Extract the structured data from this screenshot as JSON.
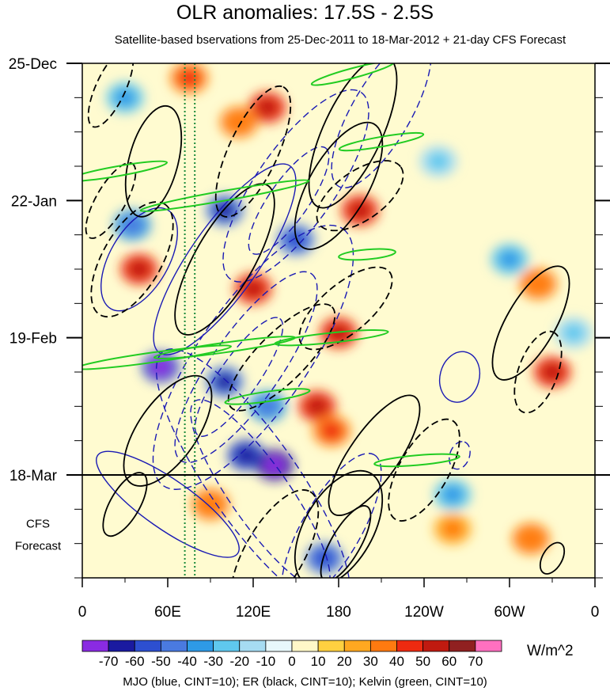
{
  "chart_data": {
    "type": "heatmap",
    "title": "OLR anomalies: 17.5S - 2.5S",
    "subtitle": "Satellite-based bservations from 25-Dec-2011 to 18-Mar-2012 + 21-day CFS Forecast",
    "x_ticks": [
      "0",
      "60E",
      "120E",
      "180",
      "120W",
      "60W",
      "0"
    ],
    "x_tick_degrees": [
      0,
      60,
      120,
      180,
      240,
      300,
      360
    ],
    "x_range_degrees": [
      0,
      360
    ],
    "y_ticks": [
      "25-Dec",
      "22-Jan",
      "19-Feb",
      "18-Mar"
    ],
    "y_tick_days": [
      0,
      28,
      56,
      84
    ],
    "y_range_days": [
      0,
      105
    ],
    "observation_end_day": 84,
    "forecast_label": [
      "CFS",
      "Forecast"
    ],
    "colorbar": {
      "units": "W/m^2",
      "levels": [
        -70,
        -60,
        -50,
        -40,
        -30,
        -20,
        -10,
        0,
        10,
        20,
        30,
        40,
        50,
        60,
        70
      ],
      "labels": [
        "-70",
        "-60",
        "-50",
        "-40",
        "-30",
        "-20",
        "-10",
        "0",
        "10",
        "20",
        "30",
        "40",
        "50",
        "60",
        "70"
      ],
      "colors": [
        "#8a2be2",
        "#1a1aa0",
        "#2d4fd0",
        "#4a7ae0",
        "#2e9ae6",
        "#5fc8ee",
        "#a6dcf2",
        "#e8f8fb",
        "#fff8c8",
        "#ffd040",
        "#ffa820",
        "#ff7a10",
        "#ee2a10",
        "#c01a10",
        "#902020",
        "#ff70c0"
      ]
    },
    "reference_lines": {
      "green_dotted_longitudes": [
        72,
        79
      ]
    },
    "contour_legend": "MJO (blue, CINT=10); ER (black, CINT=10); Kelvin (green, CINT=10)",
    "series_colors": {
      "MJO": "#1a1ab4",
      "ER": "#000000",
      "Kelvin": "#22cc22"
    },
    "anomaly_features": [
      {
        "lon": 75,
        "day": 3,
        "value": 35
      },
      {
        "lon": 130,
        "day": 9,
        "value": 40
      },
      {
        "lon": 110,
        "day": 12,
        "value": 30
      },
      {
        "lon": 195,
        "day": 30,
        "value": 45
      },
      {
        "lon": 40,
        "day": 42,
        "value": 40
      },
      {
        "lon": 120,
        "day": 46,
        "value": 45
      },
      {
        "lon": 180,
        "day": 55,
        "value": 40
      },
      {
        "lon": 165,
        "day": 70,
        "value": 40
      },
      {
        "lon": 175,
        "day": 75,
        "value": 35
      },
      {
        "lon": 90,
        "day": 90,
        "value": 30
      },
      {
        "lon": 330,
        "day": 63,
        "value": 40
      },
      {
        "lon": 320,
        "day": 45,
        "value": 30
      },
      {
        "lon": 315,
        "day": 97,
        "value": 30
      },
      {
        "lon": 260,
        "day": 95,
        "value": 25
      },
      {
        "lon": 100,
        "day": 30,
        "value": -50
      },
      {
        "lon": 150,
        "day": 36,
        "value": -45
      },
      {
        "lon": 55,
        "day": 62,
        "value": -60
      },
      {
        "lon": 100,
        "day": 65,
        "value": -50
      },
      {
        "lon": 115,
        "day": 80,
        "value": -55
      },
      {
        "lon": 135,
        "day": 82,
        "value": -70
      },
      {
        "lon": 130,
        "day": 70,
        "value": -40
      },
      {
        "lon": 30,
        "day": 7,
        "value": -30
      },
      {
        "lon": 35,
        "day": 33,
        "value": -35
      },
      {
        "lon": 170,
        "day": 101,
        "value": -45
      },
      {
        "lon": 260,
        "day": 88,
        "value": -30
      },
      {
        "lon": 300,
        "day": 40,
        "value": -25
      },
      {
        "lon": 250,
        "day": 20,
        "value": -20
      },
      {
        "lon": 345,
        "day": 55,
        "value": -20
      }
    ],
    "contours": {
      "ER": [
        {
          "lon": 50,
          "day": 20,
          "rx": 40,
          "ry": 5,
          "angle": -75,
          "value": 10
        },
        {
          "lon": 100,
          "day": 40,
          "rx": 60,
          "ry": 6,
          "angle": -60,
          "value": 10
        },
        {
          "lon": 180,
          "day": 25,
          "rx": 50,
          "ry": 6,
          "angle": -60,
          "value": 10
        },
        {
          "lon": 190,
          "day": 14,
          "rx": 58,
          "ry": 6,
          "angle": -65,
          "value": 10
        },
        {
          "lon": 180,
          "day": 95,
          "rx": 45,
          "ry": 7,
          "angle": -60,
          "value": 10
        },
        {
          "lon": 185,
          "day": 98,
          "rx": 30,
          "ry": 3,
          "angle": -60,
          "value": 10
        },
        {
          "lon": 205,
          "day": 80,
          "rx": 50,
          "ry": 5,
          "angle": -55,
          "value": 10
        },
        {
          "lon": 315,
          "day": 53,
          "rx": 45,
          "ry": 5,
          "angle": -60,
          "value": 10
        },
        {
          "lon": 60,
          "day": 75,
          "rx": 45,
          "ry": 6,
          "angle": -55,
          "value": 10
        },
        {
          "lon": 30,
          "day": 90,
          "rx": 25,
          "ry": 3,
          "angle": -60,
          "value": 10
        },
        {
          "lon": 330,
          "day": 101,
          "rx": 12,
          "ry": 2,
          "angle": -60,
          "value": 10
        },
        {
          "lon": 120,
          "day": 18,
          "rx": 50,
          "ry": 5,
          "angle": -65,
          "value": -10
        },
        {
          "lon": 35,
          "day": 40,
          "rx": 45,
          "ry": 6,
          "angle": -60,
          "value": -10
        },
        {
          "lon": 195,
          "day": 27,
          "rx": 35,
          "ry": 5,
          "angle": -35,
          "value": -10
        },
        {
          "lon": 185,
          "day": 50,
          "rx": 40,
          "ry": 5,
          "angle": -40,
          "value": -10
        },
        {
          "lon": 140,
          "day": 60,
          "rx": 50,
          "ry": 5,
          "angle": -45,
          "value": -10
        },
        {
          "lon": 135,
          "day": 100,
          "rx": 50,
          "ry": 6,
          "angle": -60,
          "value": -10
        },
        {
          "lon": 240,
          "day": 83,
          "rx": 40,
          "ry": 5,
          "angle": -60,
          "value": -10
        },
        {
          "lon": 320,
          "day": 63,
          "rx": 30,
          "ry": 4,
          "angle": -70,
          "value": -10
        },
        {
          "lon": 20,
          "day": 28,
          "rx": 30,
          "ry": 3,
          "angle": -60,
          "value": -10
        },
        {
          "lon": 20,
          "day": 5,
          "rx": 30,
          "ry": 3,
          "angle": -65,
          "value": -10
        }
      ],
      "MJO": [
        {
          "lon": 120,
          "day": 60,
          "rx": 110,
          "ry": 11,
          "angle": -55,
          "value": -10
        },
        {
          "lon": 115,
          "day": 62,
          "rx": 80,
          "ry": 7,
          "angle": -55,
          "value": -20
        },
        {
          "lon": 110,
          "day": 64,
          "rx": 50,
          "ry": 4,
          "angle": -55,
          "value": -30
        },
        {
          "lon": 150,
          "day": 25,
          "rx": 80,
          "ry": 8,
          "angle": -55,
          "value": -10
        },
        {
          "lon": 145,
          "day": 28,
          "rx": 45,
          "ry": 4,
          "angle": -55,
          "value": -20
        },
        {
          "lon": 210,
          "day": 10,
          "rx": 60,
          "ry": 6,
          "angle": -60,
          "value": -10
        },
        {
          "lon": 120,
          "day": 85,
          "rx": 110,
          "ry": 9,
          "angle": 55,
          "value": -10
        },
        {
          "lon": 125,
          "day": 88,
          "rx": 80,
          "ry": 6,
          "angle": 55,
          "value": -20
        },
        {
          "lon": 175,
          "day": 95,
          "rx": 60,
          "ry": 6,
          "angle": -60,
          "value": -10
        },
        {
          "lon": 60,
          "day": 90,
          "rx": 60,
          "ry": 5,
          "angle": 35,
          "value": 10
        },
        {
          "lon": 100,
          "day": 40,
          "rx": 80,
          "ry": 7,
          "angle": -55,
          "value": 10
        },
        {
          "lon": 40,
          "day": 40,
          "rx": 40,
          "ry": 6,
          "angle": -60,
          "value": 10
        },
        {
          "lon": 265,
          "day": 64,
          "rx": 18,
          "ry": 4,
          "angle": -75,
          "value": 10
        },
        {
          "lon": 265,
          "day": 80,
          "rx": 10,
          "ry": 2,
          "angle": -70,
          "value": -10
        }
      ],
      "Kelvin": [
        {
          "lon": 190,
          "day": 2,
          "rx": 30,
          "ry": 1,
          "angle": -15
        },
        {
          "lon": 210,
          "day": 16,
          "rx": 30,
          "ry": 1,
          "angle": -10
        },
        {
          "lon": 25,
          "day": 22,
          "rx": 35,
          "ry": 1,
          "angle": -10
        },
        {
          "lon": 100,
          "day": 27,
          "rx": 60,
          "ry": 1,
          "angle": -10
        },
        {
          "lon": 50,
          "day": 60,
          "rx": 55,
          "ry": 1,
          "angle": -8
        },
        {
          "lon": 100,
          "day": 58,
          "rx": 50,
          "ry": 1,
          "angle": -8
        },
        {
          "lon": 175,
          "day": 56,
          "rx": 40,
          "ry": 1,
          "angle": -6
        },
        {
          "lon": 130,
          "day": 68,
          "rx": 30,
          "ry": 1,
          "angle": -8
        },
        {
          "lon": 235,
          "day": 81,
          "rx": 30,
          "ry": 1,
          "angle": -5
        },
        {
          "lon": 200,
          "day": 39,
          "rx": 20,
          "ry": 1,
          "angle": -5
        }
      ]
    }
  }
}
